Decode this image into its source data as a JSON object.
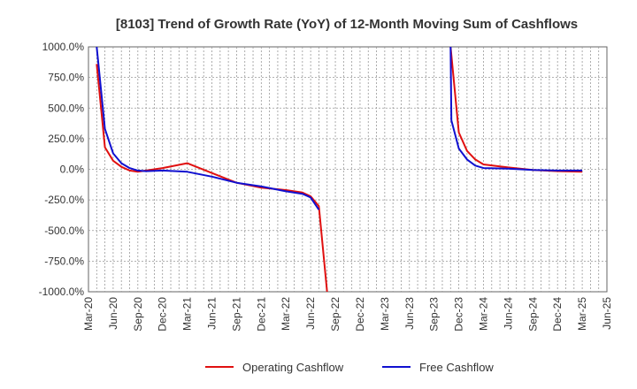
{
  "chart_data": {
    "type": "line",
    "title": "[8103]  Trend of Growth Rate (YoY) of 12-Month Moving Sum of Cashflows",
    "xlabel": "",
    "ylabel": "",
    "ylim": [
      -1000,
      1000
    ],
    "y_ticks": [
      "1000.0%",
      "750.0%",
      "500.0%",
      "250.0%",
      "0.0%",
      "-250.0%",
      "-500.0%",
      "-750.0%",
      "-1000.0%"
    ],
    "y_tick_values": [
      1000,
      750,
      500,
      250,
      0,
      -250,
      -500,
      -750,
      -1000
    ],
    "x_ticks": [
      "Mar-20",
      "Jun-20",
      "Sep-20",
      "Dec-20",
      "Mar-21",
      "Jun-21",
      "Sep-21",
      "Dec-21",
      "Mar-22",
      "Jun-22",
      "Sep-22",
      "Dec-22",
      "Mar-23",
      "Jun-23",
      "Sep-23",
      "Dec-23",
      "Mar-24",
      "Jun-24",
      "Sep-24",
      "Dec-24",
      "Mar-25",
      "Jun-25"
    ],
    "grid": true,
    "legend_position": "bottom",
    "series": [
      {
        "name": "Operating Cashflow",
        "color": "#e01010",
        "segments": [
          [
            [
              "2020-04",
              860
            ],
            [
              "2020-05",
              180
            ],
            [
              "2020-06",
              70
            ],
            [
              "2020-07",
              20
            ],
            [
              "2020-08",
              -10
            ],
            [
              "2020-09",
              -20
            ],
            [
              "2020-10",
              -10
            ],
            [
              "2020-12",
              10
            ],
            [
              "2021-03",
              50
            ],
            [
              "2021-06",
              -30
            ],
            [
              "2021-09",
              -110
            ],
            [
              "2021-12",
              -150
            ],
            [
              "2022-03",
              -170
            ],
            [
              "2022-05",
              -190
            ],
            [
              "2022-06",
              -220
            ],
            [
              "2022-07",
              -300
            ],
            [
              "2022-08",
              -1000
            ]
          ],
          [
            [
              "2023-11",
              1000
            ],
            [
              "2023-12",
              300
            ],
            [
              "2024-01",
              150
            ],
            [
              "2024-02",
              80
            ],
            [
              "2024-03",
              40
            ],
            [
              "2024-06",
              15
            ],
            [
              "2024-09",
              -5
            ],
            [
              "2024-12",
              -15
            ],
            [
              "2025-03",
              -20
            ]
          ]
        ]
      },
      {
        "name": "Free Cashflow",
        "color": "#1010d0",
        "segments": [
          [
            [
              "2020-04",
              1000
            ],
            [
              "2020-05",
              330
            ],
            [
              "2020-06",
              130
            ],
            [
              "2020-07",
              50
            ],
            [
              "2020-08",
              10
            ],
            [
              "2020-09",
              -10
            ],
            [
              "2020-10",
              -15
            ],
            [
              "2020-12",
              -10
            ],
            [
              "2021-03",
              -20
            ],
            [
              "2021-06",
              -60
            ],
            [
              "2021-09",
              -110
            ],
            [
              "2021-12",
              -140
            ],
            [
              "2022-03",
              -180
            ],
            [
              "2022-05",
              -200
            ],
            [
              "2022-06",
              -230
            ],
            [
              "2022-07",
              -330
            ]
          ],
          [
            [
              "2023-11",
              1000
            ],
            [
              "2023-11.1",
              400
            ],
            [
              "2023-12",
              170
            ],
            [
              "2024-01",
              80
            ],
            [
              "2024-02",
              30
            ],
            [
              "2024-03",
              10
            ],
            [
              "2024-06",
              5
            ],
            [
              "2024-09",
              -5
            ],
            [
              "2024-12",
              -10
            ],
            [
              "2025-03",
              -10
            ]
          ]
        ]
      }
    ]
  }
}
